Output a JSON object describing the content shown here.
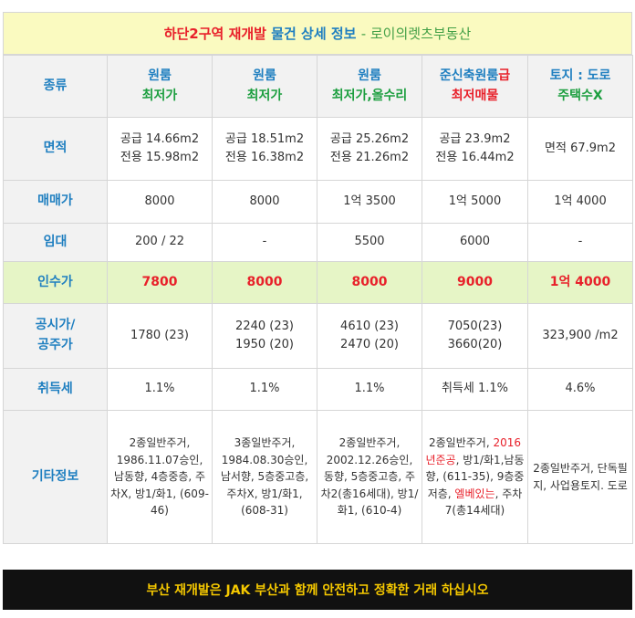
{
  "header": {
    "part1": "하단2구역 재개발",
    "part2": "물건 상세 정보",
    "part3": "- 로이의렛츠부동산"
  },
  "columns": [
    {
      "line1": "원룸",
      "line2": "최저가"
    },
    {
      "line1": "원룸",
      "line2": "최저가"
    },
    {
      "line1": "원룸",
      "line2": "최저가,올수리"
    },
    {
      "line1a": "준신축원룸",
      "line1b": "급",
      "line2": "최저매물"
    },
    {
      "line1": "토지 : 도로",
      "line2": "주택수X"
    }
  ],
  "row_labels": {
    "type": "종류",
    "area": "면적",
    "sale": "매매가",
    "rent": "임대",
    "takeover": "인수가",
    "price": "공시가/\n공주가",
    "tax": "취득세",
    "etc": "기타정보"
  },
  "rows": {
    "area": [
      [
        "공급 14.66m2",
        "전용 15.98m2"
      ],
      [
        "공급 18.51m2",
        "전용 16.38m2"
      ],
      [
        "공급 25.26m2",
        "전용 21.26m2"
      ],
      [
        "공급 23.9m2",
        "전용 16.44m2"
      ],
      [
        "면적 67.9m2"
      ]
    ],
    "sale": [
      "8000",
      "8000",
      "1억 3500",
      "1억 5000",
      "1억 4000"
    ],
    "rent": [
      "200 / 22",
      "-",
      "5500",
      "6000",
      "-"
    ],
    "takeover": [
      "7800",
      "8000",
      "8000",
      "9000",
      "1억 4000"
    ],
    "price": [
      [
        "1780 (23)"
      ],
      [
        "2240 (23)",
        "1950 (20)"
      ],
      [
        "4610 (23)",
        "2470 (20)"
      ],
      [
        "7050(23)",
        "3660(20)"
      ],
      [
        "323,900 /m2"
      ]
    ],
    "tax": [
      "1.1%",
      "1.1%",
      "1.1%",
      "취득세 1.1%",
      "4.6%"
    ],
    "etc": [
      "2종일반주거, 1986.11.07승인, 남동향, 4층중층, 주차X, 방1/화1, (609-46)",
      "3종일반주거, 1984.08.30승인, 남서향, 5층중고층, 주차X, 방1/화1, (608-31)",
      "2종일반주거, 2002.12.26승인, 동향, 5층중고층, 주차2(총16세대), 방1/화1, (610-4)",
      {
        "a": "2종일반주거,",
        "b": "2016년준공",
        "c": ", 방1/화1,남동향, (611-35), 9층중저층,",
        "d": "엘베있는",
        "e": ", 주차7(총14세대)"
      },
      "2종일반주거, 단독필지, 사업용토지. 도로"
    ]
  },
  "footer": "부산 재개발은 JAK 부산과 함께 안전하고 정확한 거래 하십시오",
  "colors": {
    "header_bg": "#fafac0",
    "red": "#e8202a",
    "blue": "#1f7fc0",
    "green": "#1b9e3e",
    "takeover_bg": "#e6f5c6",
    "footer_bg": "#111111",
    "footer_text": "#f5c800"
  }
}
